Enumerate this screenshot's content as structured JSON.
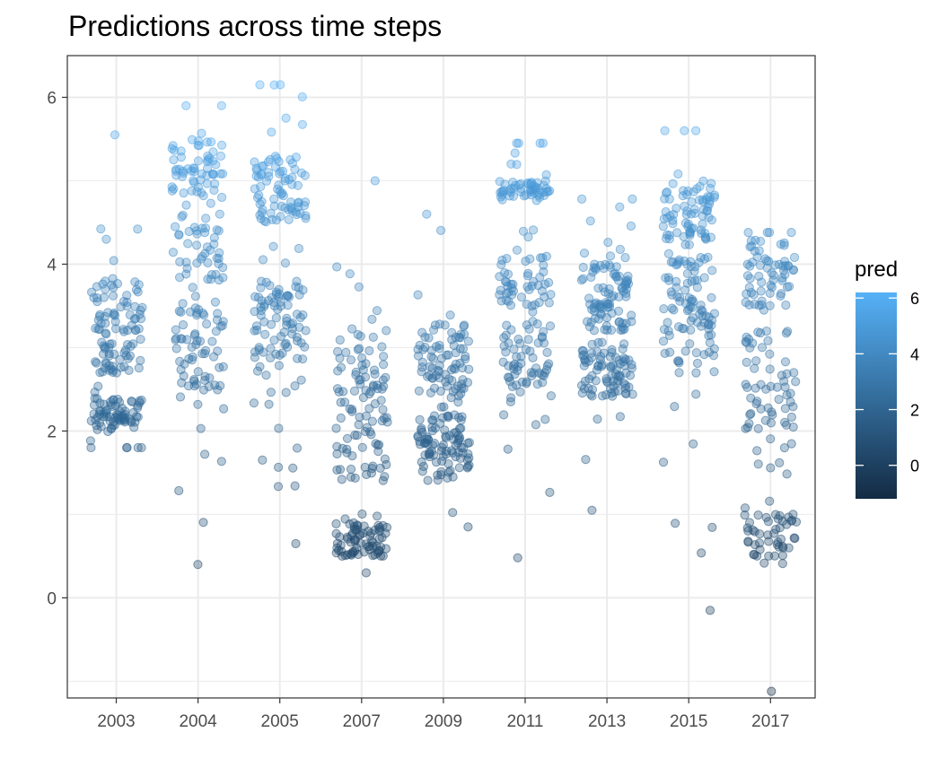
{
  "chart_data": {
    "type": "scatter",
    "title": "Predictions across time steps",
    "xlabel": "",
    "ylabel": "",
    "categories": [
      "2003",
      "2004",
      "2005",
      "2007",
      "2009",
      "2011",
      "2013",
      "2015",
      "2017"
    ],
    "ylim": [
      -1.2,
      6.5
    ],
    "y_ticks": [
      0,
      2,
      4,
      6
    ],
    "grid": true,
    "jitter": "horizontal jitter within each category; points drawn semi-transparent",
    "color_by": "pred",
    "color_scale": {
      "low": "#132B43",
      "high": "#56B1F7",
      "domain": [
        -1.2,
        6.2
      ]
    },
    "legend": {
      "title": "pred",
      "position": "right",
      "ticks": [
        0,
        2,
        4,
        6
      ]
    },
    "groups": [
      {
        "category": "2003",
        "points_approx": 180,
        "y_min": 1.8,
        "y_max": 5.55,
        "y_median": 3.0,
        "dense_ranges": [
          [
            2.0,
            2.4
          ],
          [
            2.7,
            3.8
          ]
        ]
      },
      {
        "category": "2004",
        "points_approx": 180,
        "y_min": 0.4,
        "y_max": 5.9,
        "y_median": 3.6,
        "dense_ranges": [
          [
            2.5,
            3.5
          ],
          [
            3.8,
            4.6
          ],
          [
            4.8,
            5.5
          ]
        ]
      },
      {
        "category": "2005",
        "points_approx": 180,
        "y_min": 0.65,
        "y_max": 6.15,
        "y_median": 3.3,
        "dense_ranges": [
          [
            2.8,
            3.8
          ],
          [
            4.5,
            5.3
          ]
        ]
      },
      {
        "category": "2007",
        "points_approx": 180,
        "y_min": 0.3,
        "y_max": 5.0,
        "y_median": 2.3,
        "dense_ranges": [
          [
            1.4,
            3.0
          ],
          [
            0.5,
            0.9
          ]
        ]
      },
      {
        "category": "2009",
        "points_approx": 180,
        "y_min": 0.85,
        "y_max": 4.6,
        "y_median": 2.4,
        "dense_ranges": [
          [
            1.4,
            2.2
          ],
          [
            2.4,
            3.3
          ]
        ]
      },
      {
        "category": "2011",
        "points_approx": 180,
        "y_min": 0.48,
        "y_max": 5.45,
        "y_median": 3.0,
        "dense_ranges": [
          [
            2.5,
            3.3
          ],
          [
            3.5,
            4.1
          ],
          [
            4.8,
            5.0
          ]
        ]
      },
      {
        "category": "2013",
        "points_approx": 180,
        "y_min": 1.05,
        "y_max": 4.78,
        "y_median": 3.5,
        "dense_ranges": [
          [
            3.2,
            4.0
          ],
          [
            2.4,
            3.0
          ]
        ]
      },
      {
        "category": "2015",
        "points_approx": 180,
        "y_min": -0.15,
        "y_max": 5.6,
        "y_median": 3.5,
        "dense_ranges": [
          [
            2.8,
            4.1
          ],
          [
            4.3,
            5.0
          ]
        ]
      },
      {
        "category": "2017",
        "points_approx": 180,
        "y_min": -1.12,
        "y_max": 4.38,
        "y_median": 2.5,
        "dense_ranges": [
          [
            2.0,
            3.2
          ],
          [
            3.5,
            4.3
          ],
          [
            0.5,
            1.0
          ]
        ]
      }
    ]
  }
}
